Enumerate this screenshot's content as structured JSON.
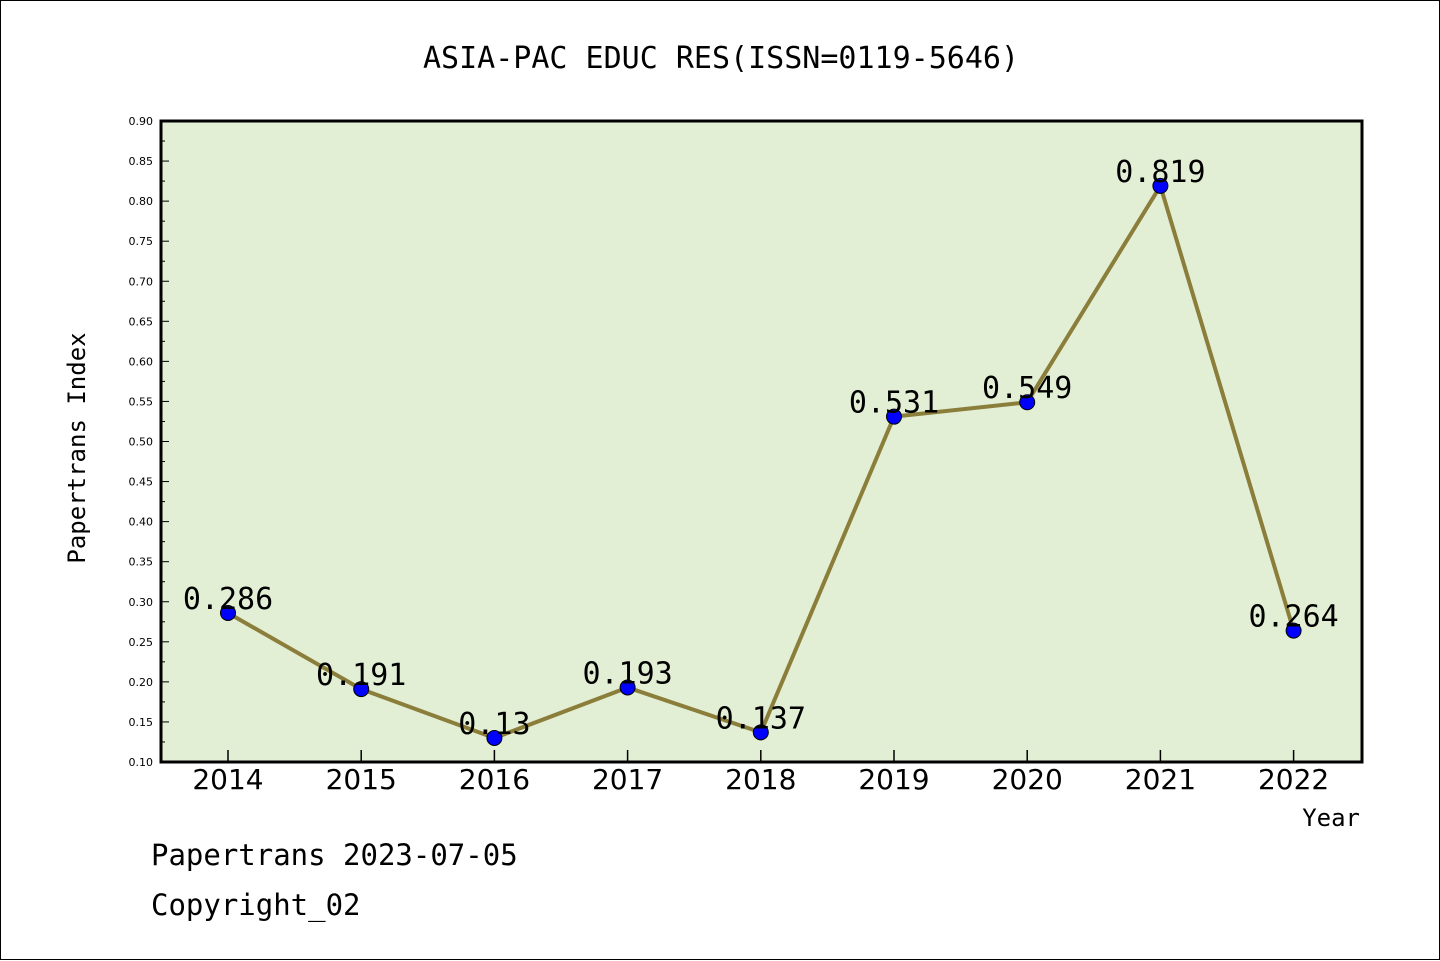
{
  "chart_data": {
    "type": "line",
    "title": "ASIA-PAC EDUC RES(ISSN=0119-5646)",
    "xlabel": "Year",
    "ylabel": "Papertrans Index",
    "x": [
      "2014",
      "2015",
      "2016",
      "2017",
      "2018",
      "2019",
      "2020",
      "2021",
      "2022"
    ],
    "series": [
      {
        "values": [
          0.286,
          0.191,
          0.13,
          0.193,
          0.137,
          0.531,
          0.549,
          0.819,
          0.264
        ],
        "labels": [
          "0.286",
          "0.191",
          "0.13",
          "0.193",
          "0.137",
          "0.531",
          "0.549",
          "0.819",
          "0.264"
        ]
      }
    ],
    "ylim": [
      0.1,
      0.9
    ],
    "yticks": [
      "0.10",
      "0.15",
      "0.20",
      "0.25",
      "0.30",
      "0.35",
      "0.40",
      "0.45",
      "0.50",
      "0.55",
      "0.60",
      "0.65",
      "0.70",
      "0.75",
      "0.80",
      "0.85",
      "0.90"
    ],
    "grid": false,
    "colors": {
      "plot_background": "#e2efd4",
      "line": "#8b7d3a",
      "marker": "#0000ff"
    }
  },
  "footer": {
    "line1": "Papertrans 2023-07-05",
    "line2": "Copyright_02"
  }
}
